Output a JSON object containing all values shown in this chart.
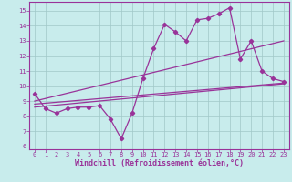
{
  "xlabel": "Windchill (Refroidissement éolien,°C)",
  "background_color": "#c8ecec",
  "grid_color": "#a0c8c8",
  "line_color": "#993399",
  "spine_color": "#993399",
  "xlim": [
    -0.5,
    23.5
  ],
  "ylim": [
    5.8,
    15.6
  ],
  "yticks": [
    6,
    7,
    8,
    9,
    10,
    11,
    12,
    13,
    14,
    15
  ],
  "xticks": [
    0,
    1,
    2,
    3,
    4,
    5,
    6,
    7,
    8,
    9,
    10,
    11,
    12,
    13,
    14,
    15,
    16,
    17,
    18,
    19,
    20,
    21,
    22,
    23
  ],
  "series1_x": [
    0,
    1,
    2,
    3,
    4,
    5,
    6,
    7,
    8,
    9,
    10,
    11,
    12,
    13,
    14,
    15,
    16,
    17,
    18,
    19,
    20,
    21,
    22,
    23
  ],
  "series1_y": [
    9.5,
    8.5,
    8.2,
    8.5,
    8.6,
    8.6,
    8.7,
    7.8,
    6.5,
    8.2,
    10.5,
    12.5,
    14.1,
    13.6,
    13.0,
    14.4,
    14.5,
    14.8,
    15.2,
    11.8,
    13.0,
    11.0,
    10.5,
    10.3
  ],
  "series2_x": [
    0,
    23
  ],
  "series2_y": [
    8.8,
    10.2
  ],
  "series3_x": [
    0,
    23
  ],
  "series3_y": [
    8.6,
    10.15
  ],
  "series4_x": [
    0,
    23
  ],
  "series4_y": [
    9.0,
    13.0
  ],
  "marker": "D",
  "marker_size": 2.2,
  "linewidth": 0.9,
  "tick_fontsize": 5.0,
  "label_fontsize": 6.0
}
